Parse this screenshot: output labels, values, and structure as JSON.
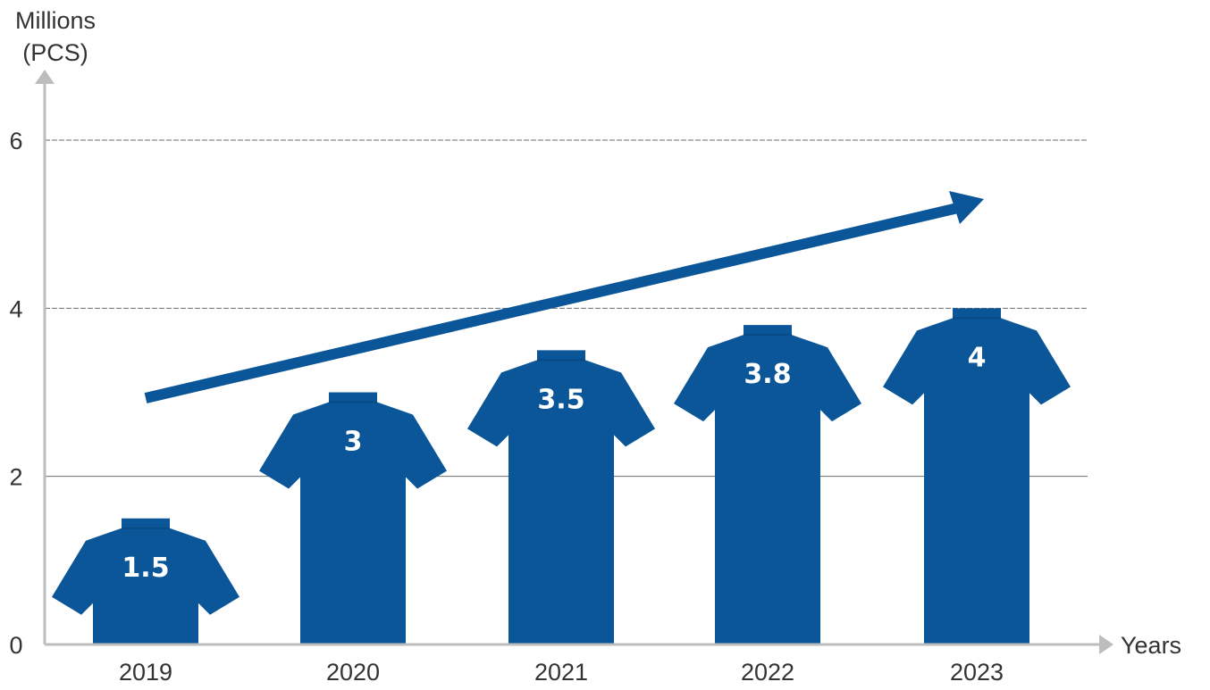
{
  "chart_data": {
    "type": "bar",
    "categories": [
      "2019",
      "2020",
      "2021",
      "2022",
      "2023"
    ],
    "values": [
      1.5,
      3,
      3.5,
      3.8,
      4
    ],
    "data_labels": [
      "1.5",
      "3",
      "3.5",
      "3.8",
      "4"
    ],
    "title": "",
    "ylabel_line1": "Millions",
    "ylabel_line2": "(PCS)",
    "xlabel": "Years",
    "ylim": [
      0,
      6
    ],
    "yticks": [
      0,
      2,
      4,
      6
    ],
    "ytick_labels": [
      "0",
      "2",
      "4",
      "6"
    ],
    "grid": true,
    "bar_shape": "t-shirt",
    "trend_arrow": true
  },
  "colors": {
    "bar": "#0a5698",
    "arrow": "#0a5698",
    "axis": "#bdbdbd",
    "grid": "#6e6e6e",
    "text": "#333333",
    "label_text": "#ffffff"
  }
}
